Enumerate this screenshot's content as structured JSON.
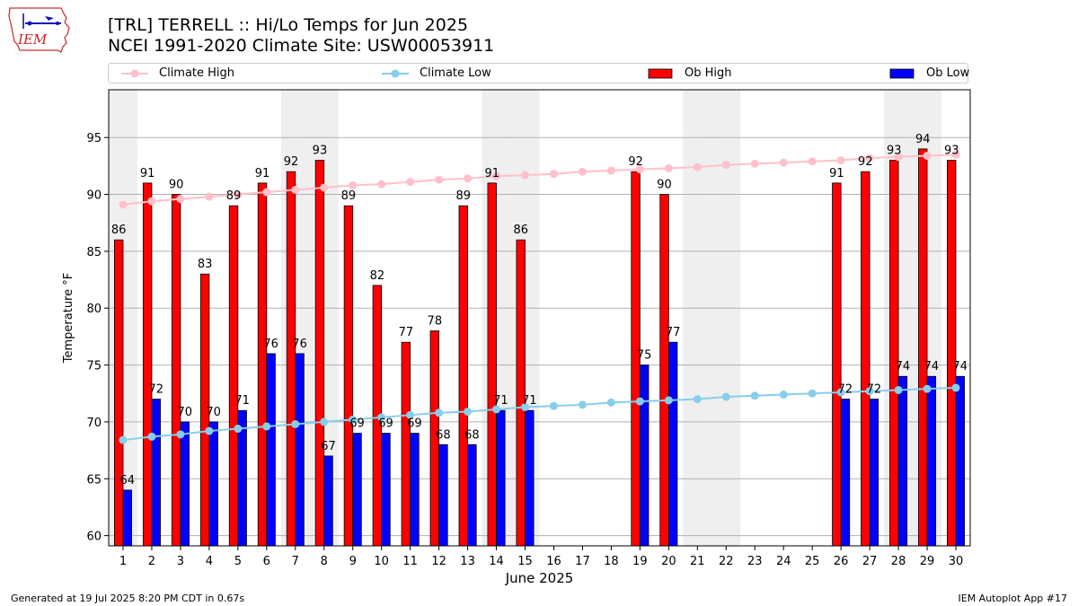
{
  "logo": {
    "text": "IEM",
    "colors": {
      "outline": "#cc3333",
      "text": "#cc2222",
      "icon": "#1111bb"
    },
    "icon": "iowa-state-outline-icon"
  },
  "title_line1": "[TRL] TERRELL :: Hi/Lo Temps for Jun 2025",
  "title_line2": "NCEI 1991-2020 Climate Site: USW00053911",
  "legend": [
    {
      "label": "Climate High",
      "kind": "line",
      "color": "#ffc0cb"
    },
    {
      "label": "Climate Low",
      "kind": "line",
      "color": "#87ceeb"
    },
    {
      "label": "Ob High",
      "kind": "bar",
      "color": "#ff0000"
    },
    {
      "label": "Ob Low",
      "kind": "bar",
      "color": "#0000ff"
    }
  ],
  "footer_left": "Generated at 19 Jul 2025 8:20 PM CDT in 0.67s",
  "footer_right": "IEM Autoplot App #17",
  "chart_data": {
    "type": "bar",
    "xlabel": "June 2025",
    "ylabel": "Temperature °F",
    "ylim": [
      59.1,
      99.2
    ],
    "xlim": [
      0.5,
      30.5
    ],
    "yticks": [
      60,
      65,
      70,
      75,
      80,
      85,
      90,
      95
    ],
    "grid": true,
    "legend_placement": "top",
    "weekend_shading_color": "#efefef",
    "weekend_days": [
      1,
      7,
      8,
      14,
      15,
      21,
      22,
      28,
      29
    ],
    "x": [
      1,
      2,
      3,
      4,
      5,
      6,
      7,
      8,
      9,
      10,
      11,
      12,
      13,
      14,
      15,
      16,
      17,
      18,
      19,
      20,
      21,
      22,
      23,
      24,
      25,
      26,
      27,
      28,
      29,
      30
    ],
    "series": [
      {
        "name": "Ob High",
        "type": "bar",
        "color": "#ff0000",
        "values": [
          86,
          91,
          90,
          83,
          89,
          91,
          92,
          93,
          89,
          82,
          77,
          78,
          89,
          91,
          86,
          null,
          null,
          null,
          92,
          90,
          null,
          null,
          null,
          null,
          null,
          91,
          92,
          93,
          94,
          93
        ]
      },
      {
        "name": "Ob Low",
        "type": "bar",
        "color": "#0000ff",
        "values": [
          64,
          72,
          70,
          70,
          71,
          76,
          76,
          67,
          69,
          69,
          69,
          68,
          68,
          71,
          71,
          null,
          null,
          null,
          75,
          77,
          null,
          null,
          null,
          null,
          null,
          72,
          72,
          74,
          74,
          74
        ]
      },
      {
        "name": "Climate High",
        "type": "line",
        "color": "#ffc0cb",
        "values": [
          89.1,
          89.4,
          89.6,
          89.8,
          90.0,
          90.2,
          90.4,
          90.6,
          90.8,
          90.9,
          91.1,
          91.3,
          91.4,
          91.6,
          91.7,
          91.8,
          92.0,
          92.1,
          92.2,
          92.3,
          92.4,
          92.6,
          92.7,
          92.8,
          92.9,
          93.0,
          93.2,
          93.3,
          93.4,
          93.5
        ]
      },
      {
        "name": "Climate Low",
        "type": "line",
        "color": "#87ceeb",
        "values": [
          68.4,
          68.7,
          68.9,
          69.2,
          69.4,
          69.6,
          69.8,
          70.0,
          70.2,
          70.4,
          70.6,
          70.8,
          70.9,
          71.1,
          71.3,
          71.4,
          71.5,
          71.7,
          71.8,
          71.9,
          72.0,
          72.2,
          72.3,
          72.4,
          72.5,
          72.6,
          72.7,
          72.8,
          72.9,
          73.0
        ]
      }
    ]
  }
}
